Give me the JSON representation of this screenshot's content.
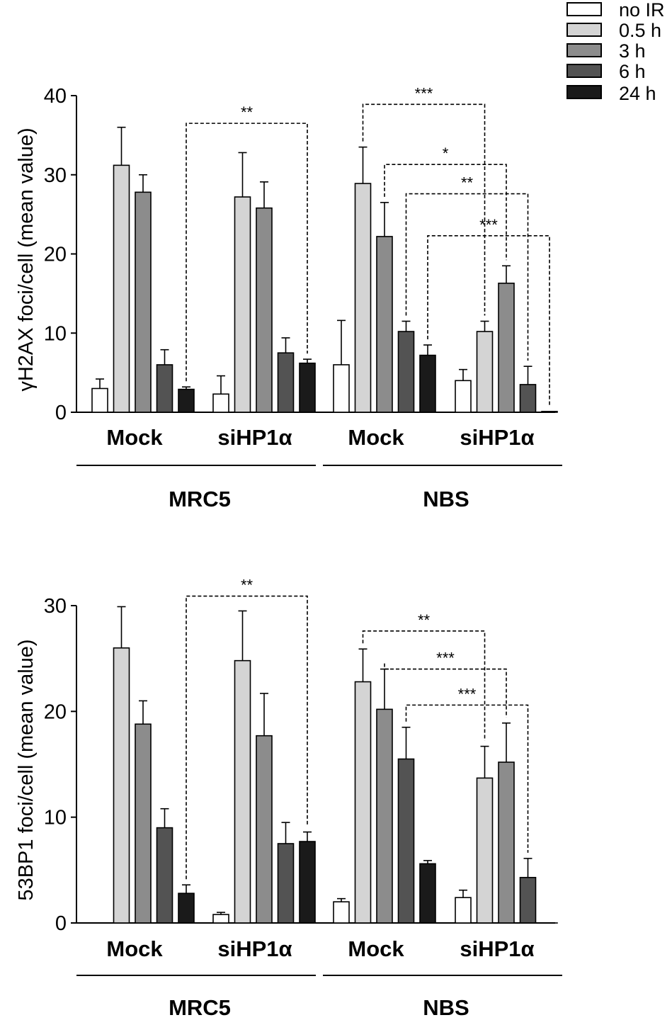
{
  "legend": [
    {
      "label": "no IR",
      "color": "#ffffff"
    },
    {
      "label": "0.5 h",
      "color": "#d4d4d4"
    },
    {
      "label": "3 h",
      "color": "#8c8c8c"
    },
    {
      "label": "6 h",
      "color": "#535353"
    },
    {
      "label": "24 h",
      "color": "#1a1a1a"
    }
  ],
  "chart_data": [
    {
      "type": "bar",
      "ylabel": "γH2AX foci/cell (mean value)",
      "ylim": [
        0,
        40
      ],
      "yticks": [
        "0",
        "10",
        "20",
        "30",
        "40"
      ],
      "categories": [
        "Mock",
        "siHP1α",
        "Mock",
        "siHP1α"
      ],
      "groups": [
        {
          "label": "MRC5",
          "span": [
            0,
            1
          ]
        },
        {
          "label": "NBS",
          "span": [
            2,
            3
          ]
        }
      ],
      "series": [
        {
          "name": "no IR",
          "values": [
            3.0,
            2.3,
            6.0,
            4.0
          ],
          "errors": [
            1.2,
            2.3,
            5.6,
            1.4
          ]
        },
        {
          "name": "0.5 h",
          "values": [
            31.2,
            27.2,
            28.9,
            10.2
          ],
          "errors": [
            4.8,
            5.6,
            4.6,
            1.3
          ]
        },
        {
          "name": "3 h",
          "values": [
            27.8,
            25.8,
            22.2,
            16.3
          ],
          "errors": [
            2.2,
            3.3,
            4.3,
            2.2
          ]
        },
        {
          "name": "6 h",
          "values": [
            6.0,
            7.5,
            10.2,
            3.5
          ],
          "errors": [
            1.9,
            1.9,
            1.3,
            2.3
          ]
        },
        {
          "name": "24 h",
          "values": [
            2.9,
            6.2,
            7.2,
            0.1
          ],
          "errors": [
            0.3,
            0.5,
            1.3,
            0.0
          ]
        }
      ],
      "significance": [
        {
          "label": "**",
          "from": [
            0,
            4
          ],
          "to": [
            1,
            4
          ],
          "level": 36.5
        },
        {
          "label": "***",
          "from": [
            2,
            1
          ],
          "to": [
            3,
            1
          ],
          "level": 38.9
        },
        {
          "label": "*",
          "from": [
            2,
            2
          ],
          "to": [
            3,
            2
          ],
          "level": 31.3
        },
        {
          "label": "**",
          "from": [
            2,
            3
          ],
          "to": [
            3,
            3
          ],
          "level": 27.6
        },
        {
          "label": "***",
          "from": [
            2,
            4
          ],
          "to": [
            3,
            4
          ],
          "level": 22.3
        }
      ]
    },
    {
      "type": "bar",
      "ylabel": "53BP1 foci/cell (mean value)",
      "ylim": [
        0,
        30
      ],
      "yticks": [
        "0",
        "10",
        "20",
        "30"
      ],
      "categories": [
        "Mock",
        "siHP1α",
        "Mock",
        "siHP1α"
      ],
      "groups": [
        {
          "label": "MRC5",
          "span": [
            0,
            1
          ]
        },
        {
          "label": "NBS",
          "span": [
            2,
            3
          ]
        }
      ],
      "series": [
        {
          "name": "no IR",
          "values": [
            0.0,
            0.8,
            2.0,
            2.4
          ],
          "errors": [
            0.0,
            0.2,
            0.3,
            0.7
          ]
        },
        {
          "name": "0.5 h",
          "values": [
            26.0,
            24.8,
            22.8,
            13.7
          ],
          "errors": [
            3.9,
            4.7,
            3.1,
            3.0
          ]
        },
        {
          "name": "3 h",
          "values": [
            18.8,
            17.7,
            20.2,
            15.2
          ],
          "errors": [
            2.2,
            4.0,
            3.8,
            3.7
          ]
        },
        {
          "name": "6 h",
          "values": [
            9.0,
            7.5,
            15.5,
            4.3
          ],
          "errors": [
            1.8,
            2.0,
            3.0,
            1.8
          ]
        },
        {
          "name": "24 h",
          "values": [
            2.8,
            7.7,
            5.6,
            0.0
          ],
          "errors": [
            0.8,
            0.9,
            0.3,
            0.0
          ]
        }
      ],
      "significance": [
        {
          "label": "**",
          "from": [
            0,
            4
          ],
          "to": [
            1,
            4
          ],
          "level": 30.9
        },
        {
          "label": "**",
          "from": [
            2,
            1
          ],
          "to": [
            3,
            1
          ],
          "level": 27.6
        },
        {
          "label": "***",
          "from": [
            2,
            2
          ],
          "to": [
            3,
            2
          ],
          "level": 24.0
        },
        {
          "label": "***",
          "from": [
            2,
            3
          ],
          "to": [
            3,
            3
          ],
          "level": 20.6
        }
      ]
    }
  ]
}
